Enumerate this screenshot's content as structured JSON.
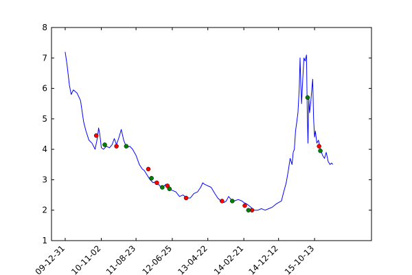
{
  "chart_data": {
    "type": "line",
    "title": "",
    "xlabel": "",
    "ylabel": "",
    "ylim": [
      1,
      8
    ],
    "yticks": [
      1,
      2,
      3,
      4,
      5,
      6,
      7,
      8
    ],
    "xlim": [
      "2009-09-06",
      "2017-02-06"
    ],
    "xtick_dates": [
      "2009-12-31",
      "2010-11-02",
      "2011-08-23",
      "2012-06-25",
      "2013-04-22",
      "2014-02-21",
      "2014-12-12",
      "2015-10-13"
    ],
    "xtick_labels": [
      "09-12-31",
      "10-11-02",
      "11-08-23",
      "12-06-25",
      "13-04-22",
      "14-02-21",
      "14-12-12",
      "15-10-13"
    ],
    "grid": false,
    "series": [
      {
        "color": "#0000ff",
        "style": "line",
        "points": [
          [
            "2009-12-31",
            7.2
          ],
          [
            "2010-01-15",
            6.8
          ],
          [
            "2010-02-05",
            6.1
          ],
          [
            "2010-02-20",
            5.8
          ],
          [
            "2010-03-10",
            5.95
          ],
          [
            "2010-04-10",
            5.85
          ],
          [
            "2010-05-10",
            5.6
          ],
          [
            "2010-06-05",
            4.9
          ],
          [
            "2010-06-25",
            4.6
          ],
          [
            "2010-07-20",
            4.3
          ],
          [
            "2010-08-15",
            4.2
          ],
          [
            "2010-09-10",
            4.0
          ],
          [
            "2010-10-01",
            4.4
          ],
          [
            "2010-10-10",
            4.7
          ],
          [
            "2010-10-20",
            4.5
          ],
          [
            "2010-11-02",
            4.05
          ],
          [
            "2010-11-20",
            4.0
          ],
          [
            "2010-12-15",
            4.1
          ],
          [
            "2011-01-10",
            4.05
          ],
          [
            "2011-02-01",
            4.15
          ],
          [
            "2011-02-20",
            4.35
          ],
          [
            "2011-03-10",
            4.15
          ],
          [
            "2011-04-01",
            4.4
          ],
          [
            "2011-04-20",
            4.65
          ],
          [
            "2011-05-10",
            4.3
          ],
          [
            "2011-06-05",
            4.05
          ],
          [
            "2011-07-01",
            4.1
          ],
          [
            "2011-07-25",
            4.0
          ],
          [
            "2011-08-23",
            3.8
          ],
          [
            "2011-09-20",
            3.5
          ],
          [
            "2011-10-15",
            3.35
          ],
          [
            "2011-11-01",
            3.3
          ],
          [
            "2011-11-25",
            3.15
          ],
          [
            "2011-12-20",
            3.0
          ],
          [
            "2012-01-15",
            2.9
          ],
          [
            "2012-02-10",
            2.95
          ],
          [
            "2012-03-10",
            2.8
          ],
          [
            "2012-04-05",
            2.75
          ],
          [
            "2012-05-01",
            2.85
          ],
          [
            "2012-05-25",
            2.7
          ],
          [
            "2012-06-25",
            2.65
          ],
          [
            "2012-07-25",
            2.6
          ],
          [
            "2012-08-25",
            2.45
          ],
          [
            "2012-09-25",
            2.5
          ],
          [
            "2012-10-25",
            2.4
          ],
          [
            "2012-11-25",
            2.4
          ],
          [
            "2012-12-25",
            2.55
          ],
          [
            "2013-01-25",
            2.6
          ],
          [
            "2013-02-20",
            2.75
          ],
          [
            "2013-03-10",
            2.9
          ],
          [
            "2013-03-25",
            2.85
          ],
          [
            "2013-04-22",
            2.8
          ],
          [
            "2013-05-20",
            2.75
          ],
          [
            "2013-06-20",
            2.55
          ],
          [
            "2013-07-15",
            2.4
          ],
          [
            "2013-08-10",
            2.3
          ],
          [
            "2013-09-05",
            2.25
          ],
          [
            "2013-09-25",
            2.3
          ],
          [
            "2013-10-15",
            2.45
          ],
          [
            "2013-11-05",
            2.35
          ],
          [
            "2013-12-01",
            2.3
          ],
          [
            "2014-01-05",
            2.35
          ],
          [
            "2014-02-05",
            2.3
          ],
          [
            "2014-02-21",
            2.25
          ],
          [
            "2014-03-20",
            2.2
          ],
          [
            "2014-04-20",
            2.1
          ],
          [
            "2014-05-20",
            2.0
          ],
          [
            "2014-06-20",
            2.0
          ],
          [
            "2014-07-20",
            2.05
          ],
          [
            "2014-08-20",
            2.0
          ],
          [
            "2014-09-20",
            2.05
          ],
          [
            "2014-10-20",
            2.1
          ],
          [
            "2014-11-20",
            2.2
          ],
          [
            "2014-12-12",
            2.25
          ],
          [
            "2015-01-05",
            2.3
          ],
          [
            "2015-01-25",
            2.6
          ],
          [
            "2015-02-15",
            2.9
          ],
          [
            "2015-03-05",
            3.3
          ],
          [
            "2015-03-20",
            3.7
          ],
          [
            "2015-04-05",
            3.5
          ],
          [
            "2015-04-15",
            3.9
          ],
          [
            "2015-04-25",
            4.0
          ],
          [
            "2015-05-05",
            4.6
          ],
          [
            "2015-05-15",
            4.9
          ],
          [
            "2015-05-25",
            5.2
          ],
          [
            "2015-06-05",
            6.0
          ],
          [
            "2015-06-12",
            7.0
          ],
          [
            "2015-06-18",
            6.2
          ],
          [
            "2015-06-25",
            5.5
          ],
          [
            "2015-07-05",
            6.3
          ],
          [
            "2015-07-15",
            7.0
          ],
          [
            "2015-07-25",
            6.9
          ],
          [
            "2015-08-05",
            7.1
          ],
          [
            "2015-08-12",
            5.2
          ],
          [
            "2015-08-18",
            4.2
          ],
          [
            "2015-08-25",
            5.7
          ],
          [
            "2015-09-01",
            5.2
          ],
          [
            "2015-09-10",
            5.5
          ],
          [
            "2015-09-20",
            6.0
          ],
          [
            "2015-09-27",
            6.3
          ],
          [
            "2015-10-05",
            5.0
          ],
          [
            "2015-10-13",
            4.4
          ],
          [
            "2015-10-20",
            4.6
          ],
          [
            "2015-11-01",
            4.2
          ],
          [
            "2015-11-15",
            4.3
          ],
          [
            "2015-12-01",
            4.0
          ],
          [
            "2015-12-20",
            3.8
          ],
          [
            "2016-01-05",
            3.7
          ],
          [
            "2016-01-20",
            3.9
          ],
          [
            "2016-02-05",
            3.6
          ],
          [
            "2016-02-20",
            3.5
          ],
          [
            "2016-03-05",
            3.55
          ],
          [
            "2016-03-15",
            3.5
          ]
        ]
      },
      {
        "color": "#ff0000",
        "style": "markers",
        "points": [
          [
            "2010-09-20",
            4.45
          ],
          [
            "2011-03-10",
            4.1
          ],
          [
            "2011-12-05",
            3.35
          ],
          [
            "2012-02-15",
            2.9
          ],
          [
            "2012-05-15",
            2.8
          ],
          [
            "2012-10-20",
            2.4
          ],
          [
            "2013-08-20",
            2.3
          ],
          [
            "2014-03-01",
            2.15
          ],
          [
            "2014-05-01",
            2.0
          ],
          [
            "2015-11-20",
            4.1
          ]
        ]
      },
      {
        "color": "#008000",
        "style": "markers",
        "points": [
          [
            "2010-12-01",
            4.15
          ],
          [
            "2011-06-01",
            4.1
          ],
          [
            "2012-01-01",
            3.05
          ],
          [
            "2012-04-01",
            2.75
          ],
          [
            "2012-06-01",
            2.7
          ],
          [
            "2013-11-15",
            2.3
          ],
          [
            "2014-04-01",
            2.0
          ],
          [
            "2015-08-15",
            5.7
          ],
          [
            "2015-12-01",
            3.95
          ]
        ]
      }
    ]
  }
}
